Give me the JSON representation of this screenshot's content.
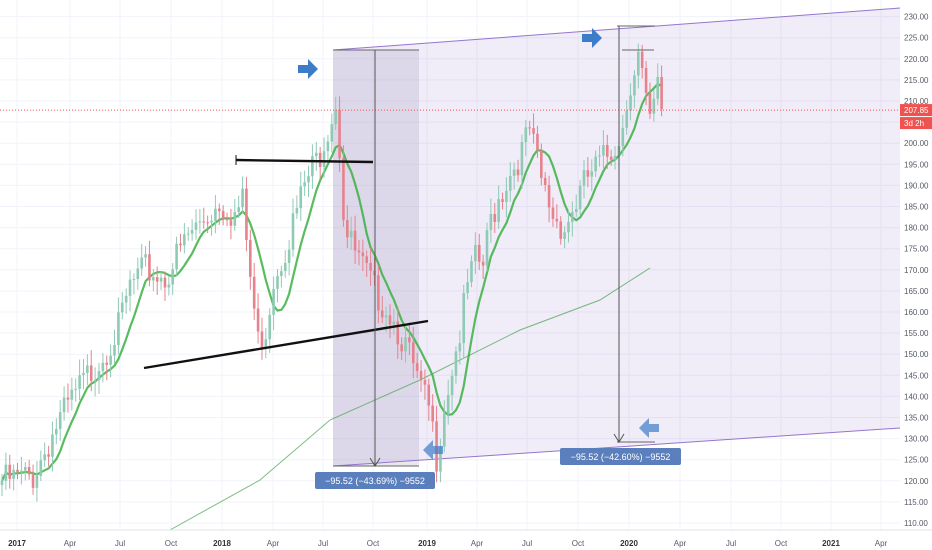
{
  "chart_data": {
    "type": "candlestick",
    "y_ticks": [
      "110.00",
      "115.00",
      "120.00",
      "125.00",
      "130.00",
      "135.00",
      "140.00",
      "145.00",
      "150.00",
      "155.00",
      "160.00",
      "165.00",
      "170.00",
      "175.00",
      "180.00",
      "185.00",
      "190.00",
      "195.00",
      "200.00",
      "205.00",
      "210.00",
      "215.00",
      "220.00",
      "225.00",
      "230.00"
    ],
    "ylim": [
      107,
      231
    ],
    "x_ticks": [
      {
        "label": "2017",
        "year": true
      },
      {
        "label": "Apr",
        "year": false
      },
      {
        "label": "Jul",
        "year": false
      },
      {
        "label": "Oct",
        "year": false
      },
      {
        "label": "2018",
        "year": true
      },
      {
        "label": "Apr",
        "year": false
      },
      {
        "label": "Jul",
        "year": false
      },
      {
        "label": "Oct",
        "year": false
      },
      {
        "label": "2019",
        "year": true
      },
      {
        "label": "Apr",
        "year": false
      },
      {
        "label": "Jul",
        "year": false
      },
      {
        "label": "Oct",
        "year": false
      },
      {
        "label": "2020",
        "year": true
      },
      {
        "label": "Apr",
        "year": false
      },
      {
        "label": "Jul",
        "year": false
      },
      {
        "label": "Oct",
        "year": false
      },
      {
        "label": "2021",
        "year": true
      },
      {
        "label": "Apr",
        "year": false
      }
    ],
    "x_range": [
      "2017-01",
      "2021-05"
    ],
    "last_price": {
      "value": 207.85,
      "label": "207.85",
      "countdown": "3d 2h"
    },
    "measurements": [
      {
        "label": "−95.52 (−43.69%) −9552",
        "from": 218.5,
        "to": 123
      },
      {
        "label": "−95.52 (−42.60%) −9552",
        "from": 224,
        "to": 128
      }
    ],
    "colors": {
      "up": "#26a69a",
      "down": "#ef5350",
      "ma_fast": "#3cb043",
      "ma_slow": "#43a047",
      "channel": "#9575cd",
      "measure_box": "#5b7fbd",
      "price_line": "#ef5350",
      "arrow": "#3d7cc9"
    },
    "icons": [
      "arrow-right-icon",
      "arrow-left-icon"
    ],
    "grid": true
  }
}
